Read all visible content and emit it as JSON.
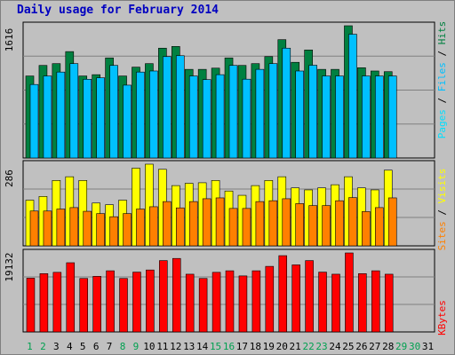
{
  "title": "Daily usage for February 2014",
  "colors": {
    "background": "#c0c0c0",
    "title": "#0000c0",
    "hits": "#008040",
    "files": "#00c0ff",
    "pages": "#00e0ff",
    "visits": "#ffff00",
    "sites": "#ff8000",
    "kbytes": "#ff0000",
    "weekend_day": "#00a050",
    "week_day": "#000000",
    "max_label": "#000000"
  },
  "chart_data": [
    {
      "type": "bar",
      "title": "Daily usage for February 2014",
      "panel": "hits_files_pages",
      "max_label": "1616",
      "ymax": 1616,
      "legend": [
        "Pages",
        "Files",
        "Hits"
      ],
      "categories": [
        "1",
        "2",
        "3",
        "4",
        "5",
        "6",
        "7",
        "8",
        "9",
        "10",
        "11",
        "12",
        "13",
        "14",
        "15",
        "16",
        "17",
        "18",
        "19",
        "20",
        "21",
        "22",
        "23",
        "24",
        "25",
        "26",
        "27",
        "28"
      ],
      "series": [
        {
          "name": "Hits",
          "values": [
            1002,
            1131,
            1153,
            1300,
            1002,
            1018,
            1223,
            1002,
            1110,
            1153,
            1342,
            1363,
            1083,
            1083,
            1098,
            1223,
            1131,
            1153,
            1239,
            1446,
            1169,
            1320,
            1083,
            1083,
            1616,
            1103,
            1063,
            1055
          ]
        },
        {
          "name": "Files",
          "values": [
            898,
            1002,
            1050,
            1153,
            962,
            980,
            1131,
            890,
            1050,
            1063,
            1239,
            1250,
            1002,
            958,
            1018,
            1131,
            963,
            1083,
            1153,
            1342,
            1063,
            1133,
            1002,
            1002,
            1512,
            1002,
            1002,
            1002
          ]
        },
        {
          "name": "Pages",
          "values": [
            0,
            0,
            0,
            0,
            0,
            0,
            0,
            0,
            0,
            0,
            0,
            0,
            0,
            0,
            0,
            0,
            0,
            0,
            0,
            0,
            0,
            0,
            0,
            0,
            0,
            0,
            0,
            0
          ]
        }
      ]
    },
    {
      "type": "bar",
      "panel": "visits_sites",
      "max_label": "286",
      "ymax": 286,
      "legend": [
        "Sites",
        "Visits"
      ],
      "categories": [
        "1",
        "2",
        "3",
        "4",
        "5",
        "6",
        "7",
        "8",
        "9",
        "10",
        "11",
        "12",
        "13",
        "14",
        "15",
        "16",
        "17",
        "18",
        "19",
        "20",
        "21",
        "22",
        "23",
        "24",
        "25",
        "26",
        "27",
        "28"
      ],
      "series": [
        {
          "name": "Visits",
          "values": [
            160,
            173,
            229,
            242,
            229,
            150,
            144,
            160,
            272,
            286,
            268,
            211,
            219,
            221,
            229,
            192,
            177,
            211,
            229,
            242,
            203,
            196,
            203,
            214,
            242,
            203,
            196,
            265
          ]
        },
        {
          "name": "Sites",
          "values": [
            122,
            122,
            129,
            134,
            121,
            113,
            102,
            113,
            129,
            137,
            155,
            133,
            155,
            165,
            168,
            131,
            131,
            155,
            158,
            165,
            148,
            141,
            141,
            158,
            169,
            120,
            134,
            168
          ]
        }
      ]
    },
    {
      "type": "bar",
      "panel": "kbytes",
      "max_label": "19132",
      "ymax": 19132,
      "legend": [
        "KBytes"
      ],
      "categories": [
        "1",
        "2",
        "3",
        "4",
        "5",
        "6",
        "7",
        "8",
        "9",
        "10",
        "11",
        "12",
        "13",
        "14",
        "15",
        "16",
        "17",
        "18",
        "19",
        "20",
        "21",
        "22",
        "23",
        "24",
        "25",
        "26",
        "27",
        "28"
      ],
      "series": [
        {
          "name": "KBytes",
          "values": [
            13023,
            14123,
            14435,
            16762,
            12955,
            13467,
            14811,
            12955,
            14487,
            15006,
            17280,
            17798,
            13985,
            12955,
            14435,
            14811,
            13570,
            14811,
            15883,
            18475,
            16243,
            17280,
            14487,
            13985,
            19132,
            14123,
            14811,
            13985
          ]
        }
      ]
    }
  ],
  "x_axis": {
    "days": [
      "1",
      "2",
      "3",
      "4",
      "5",
      "6",
      "7",
      "8",
      "9",
      "10",
      "11",
      "12",
      "13",
      "14",
      "15",
      "16",
      "17",
      "18",
      "19",
      "20",
      "21",
      "22",
      "23",
      "24",
      "25",
      "26",
      "27",
      "28",
      "29",
      "30",
      "31"
    ],
    "weekend_days": [
      "1",
      "2",
      "8",
      "9",
      "15",
      "16",
      "22",
      "23",
      "29",
      "30"
    ]
  }
}
